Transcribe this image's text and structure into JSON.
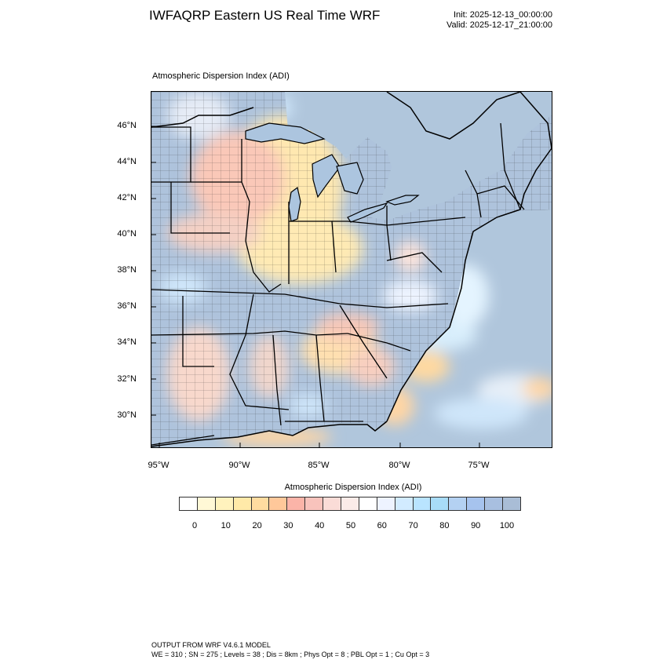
{
  "title": "IWFAQRP Eastern US Real Time WRF",
  "init_time": "Init: 2025-12-13_00:00:00",
  "valid_time": "Valid: 2025-12-17_21:00:00",
  "plot_subtitle": "Atmospheric Dispersion Index   (ADI)",
  "lat_labels": [
    "46°N",
    "44°N",
    "42°N",
    "40°N",
    "38°N",
    "36°N",
    "34°N",
    "32°N",
    "30°N"
  ],
  "lon_labels": [
    "95°W",
    "90°W",
    "85°W",
    "80°W",
    "75°W"
  ],
  "colorbar": {
    "title": "Atmospheric Dispersion Index  (ADI)",
    "colors": [
      "#ffffff",
      "#fff8d6",
      "#fff2bd",
      "#ffe9a8",
      "#ffdca0",
      "#ffc89a",
      "#fbb4a8",
      "#f8c3bc",
      "#fadcd7",
      "#fbebe8",
      "#ffffff",
      "#eef3ff",
      "#d2ebff",
      "#b9e4ff",
      "#a8dcf8",
      "#b4d1f2",
      "#a6c3ee",
      "#a8bfe0",
      "#a9bdd6"
    ],
    "tick_labels": [
      "0",
      "10",
      "20",
      "30",
      "40",
      "50",
      "60",
      "70",
      "80",
      "90",
      "100"
    ]
  },
  "footer": {
    "line1": "OUTPUT FROM WRF V4.6.1 MODEL",
    "line2": "WE = 310 ; SN = 275 ; Levels = 38 ; Dis = 8km ; Phys Opt = 8 ; PBL Opt = 1 ; Cu Opt = 3"
  }
}
